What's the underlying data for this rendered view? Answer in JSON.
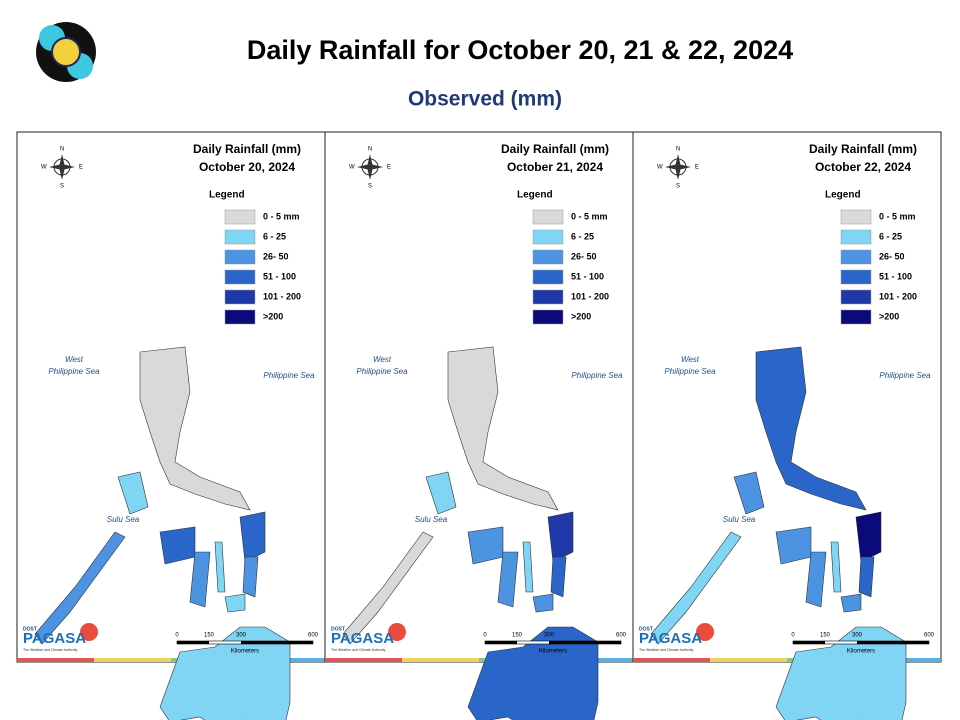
{
  "header": {
    "title": "Daily Rainfall for October 20, 21 & 22, 2024",
    "subtitle": "Observed (mm)"
  },
  "panels": [
    {
      "heading": "Daily Rainfall (mm)",
      "date": "October 20, 2024"
    },
    {
      "heading": "Daily Rainfall (mm)",
      "date": "October 21, 2024"
    },
    {
      "heading": "Daily Rainfall (mm)",
      "date": "October 22, 2024"
    }
  ],
  "legend": {
    "title": "Legend",
    "items": [
      {
        "label": "0 - 5 mm",
        "color": "#d9d9d9"
      },
      {
        "label": "6 - 25",
        "color": "#80d4f4"
      },
      {
        "label": "26- 50",
        "color": "#4c93e2"
      },
      {
        "label": "51 - 100",
        "color": "#2a66c9"
      },
      {
        "label": "101 - 200",
        "color": "#1f3aa8"
      },
      {
        "label": ">200",
        "color": "#0a0a7a"
      }
    ]
  },
  "seas": {
    "west": [
      "West",
      "Philippine Sea"
    ],
    "east": "Philippine Sea",
    "sulu": "Sulu Sea"
  },
  "compass": {
    "n": "N",
    "s": "S",
    "e": "E",
    "w": "W"
  },
  "scale": {
    "ticks": [
      "0",
      "150",
      "300",
      "600"
    ],
    "unit": "Kilometers"
  },
  "branding": {
    "agency": "DOST",
    "name": "PAGASA",
    "tagline": "The Weather and Climate Authority"
  }
}
